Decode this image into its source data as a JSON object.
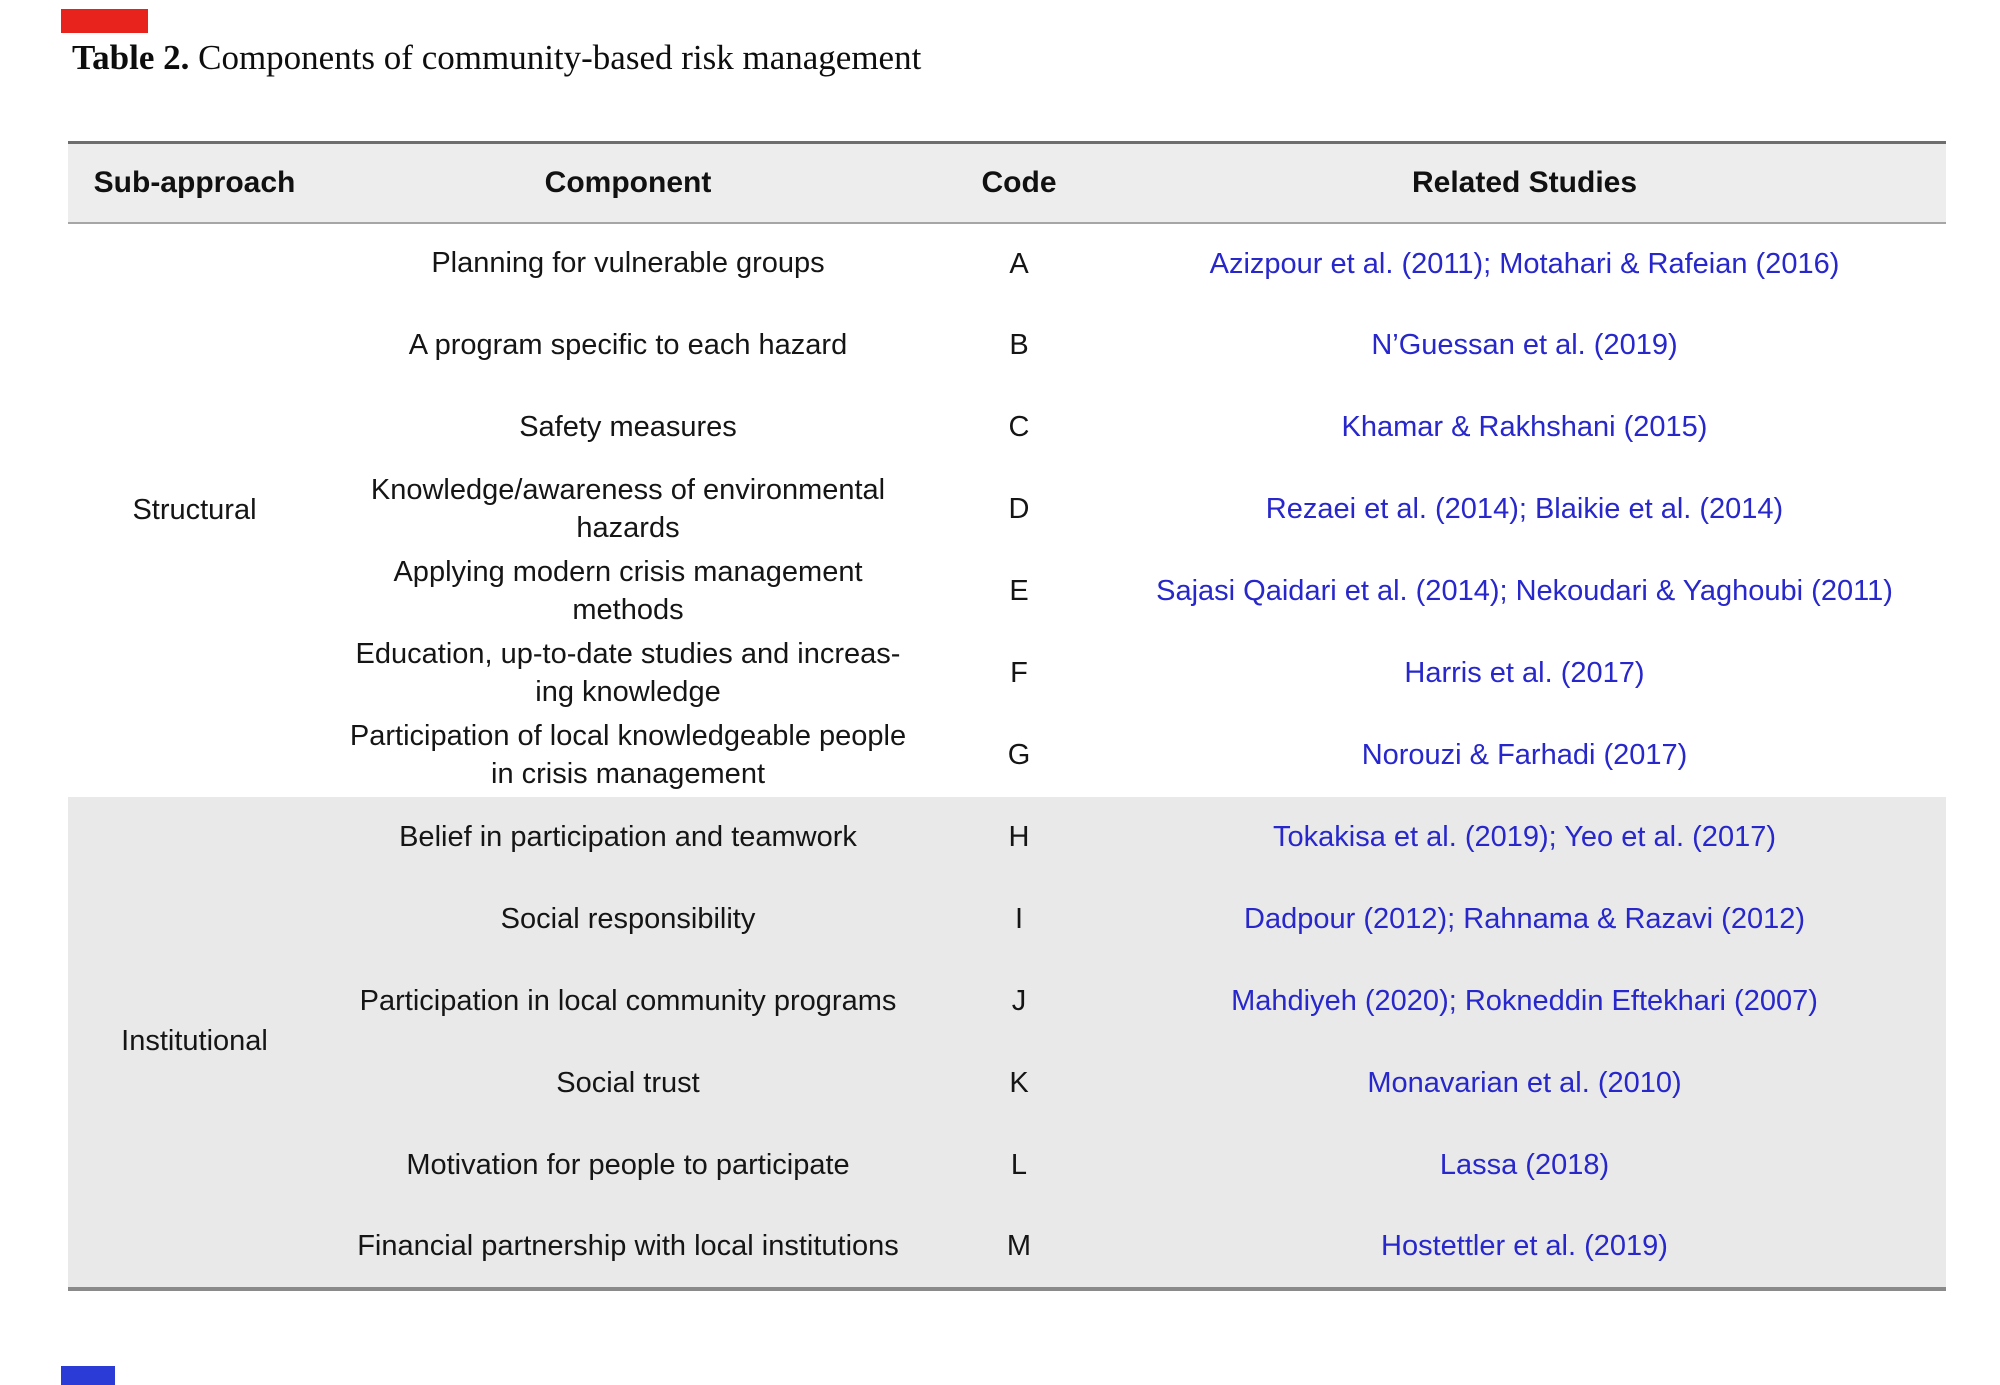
{
  "title": {
    "label": "Table 2.",
    "text": "Components of community-based risk management"
  },
  "colors": {
    "link_blue": "#2727cb",
    "header_bg": "#ededed",
    "institutional_bg": "#e9e9e9",
    "top_left_marker_red": "#e8231e",
    "bottom_left_marker_blue": "#2b3bd6"
  },
  "table": {
    "headers": [
      "Sub-approach",
      "Component",
      "Code",
      "Related Studies"
    ],
    "sections": [
      {
        "sub_approach": "Structural",
        "rows": [
          {
            "component": "Planning for vulnerable groups",
            "code": "A",
            "studies": "Azizpour et al. (2011); Motahari & Rafeian (2016)"
          },
          {
            "component": "A program specific to each hazard",
            "code": "B",
            "studies": "N’Guessan et al. (2019)"
          },
          {
            "component": "Safety measures",
            "code": "C",
            "studies": "Khamar & Rakhshani (2015)"
          },
          {
            "component": "Knowledge/awareness of environmental\nhazards",
            "code": "D",
            "studies": "Rezaei et al. (2014); Blaikie et al. (2014)"
          },
          {
            "component": "Applying modern crisis management\nmethods",
            "code": "E",
            "studies": "Sajasi Qaidari et al. (2014); Nekoudari & Yaghoubi (2011)"
          },
          {
            "component": "Education, up-to-date studies and increas-\ning knowledge",
            "code": "F",
            "studies": "Harris et al. (2017)"
          },
          {
            "component": "Participation of local knowledgeable people\nin crisis management",
            "code": "G",
            "studies": "Norouzi & Farhadi (2017)"
          }
        ]
      },
      {
        "sub_approach": "Institutional",
        "rows": [
          {
            "component": "Belief in participation and teamwork",
            "code": "H",
            "studies": "Tokakisa et al. (2019); Yeo et al. (2017)"
          },
          {
            "component": "Social responsibility",
            "code": "I",
            "studies": "Dadpour (2012); Rahnama & Razavi (2012)"
          },
          {
            "component": "Participation in local community programs",
            "code": "J",
            "studies": "Mahdiyeh (2020); Rokneddin Eftekhari (2007)"
          },
          {
            "component": "Social trust",
            "code": "K",
            "studies": "Monavarian et al. (2010)"
          },
          {
            "component": "Motivation for people to participate",
            "code": "L",
            "studies": "Lassa (2018)"
          },
          {
            "component": "Financial partnership with local institutions",
            "code": "M",
            "studies": "Hostettler et al. (2019)"
          }
        ]
      }
    ]
  }
}
